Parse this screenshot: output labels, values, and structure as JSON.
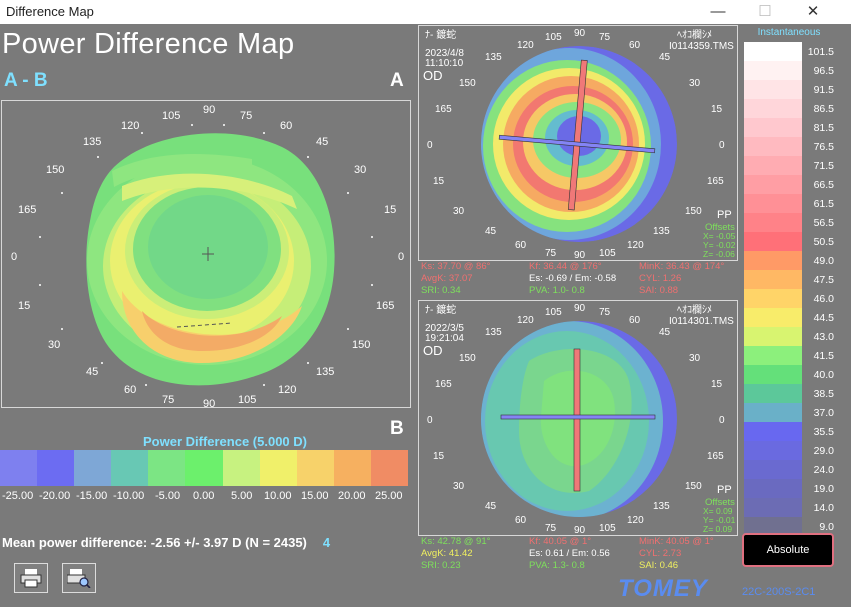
{
  "window": {
    "title": "Difference Map",
    "min": "—",
    "max": "☐",
    "close": "✕"
  },
  "header": {
    "title": "Power Difference Map",
    "subtitle": "A - B",
    "label_a": "A",
    "label_b": "B"
  },
  "main_map": {
    "ticks": [
      "90",
      "105",
      "120",
      "135",
      "150",
      "165",
      "0",
      "15",
      "30",
      "45",
      "60",
      "75",
      "90",
      "105",
      "120",
      "135",
      "150",
      "165",
      "0",
      "15",
      "30",
      "45",
      "60",
      "75"
    ]
  },
  "scale": {
    "title": "Power Difference (5.000 D)",
    "labels": [
      "-25.00",
      "-20.00",
      "-15.00",
      "-10.00",
      "-5.00",
      "0.00",
      "5.00",
      "10.00",
      "15.00",
      "20.00",
      "25.00"
    ],
    "colors": [
      "#7e80ef",
      "#6c6cf2",
      "#7ea7d6",
      "#68c8b4",
      "#7ce584",
      "#6cf06c",
      "#c7f280",
      "#f0f06a",
      "#f7d26a",
      "#f6b060",
      "#f08c64"
    ]
  },
  "mean": {
    "text": "Mean power difference:  -2.56 +/-  3.97 D (N = 2435)",
    "count": "4"
  },
  "toolbar": {
    "print_label": "print",
    "preview_label": "print-preview"
  },
  "map_a": {
    "name": "ﾅ- 鍍蛇",
    "name_right": "ﾍｵｺ欄ｼﾒ",
    "date": "2023/4/8",
    "time": "11:10:10",
    "file": "I0114359.TMS",
    "eye": "OD",
    "pp": "PP",
    "offsets_title": "Offsets",
    "offsets": [
      "X= -0.05",
      "Y= -0.02",
      "Z= -0.06"
    ],
    "stats": {
      "ks": "Ks: 37.70 @ 86°",
      "kf": "Kf: 36.44 @ 176°",
      "mink": "MinK: 36.43 @ 174°",
      "avgk": "AvgK: 37.07",
      "es": "Es: -0.69 / Em: -0.58",
      "cyl": "CYL:  1.26",
      "sri": "SRI: 0.34",
      "pva": "PVA:  1.0- 0.8",
      "sai": "SAI: 0.88"
    }
  },
  "map_b": {
    "name": "ﾅ- 鍍蛇",
    "name_right": "ﾍｵｺ欄ｼﾒ",
    "date": "2022/3/5",
    "time": "19:21:04",
    "file": "I0114301.TMS",
    "eye": "OD",
    "pp": "PP",
    "offsets_title": "Offsets",
    "offsets": [
      "X= 0.09",
      "Y= -0.01",
      "Z= 0.09"
    ],
    "stats": {
      "ks": "Ks: 42.78 @ 91°",
      "kf": "Kf: 40.05 @ 1°",
      "mink": "MinK: 40.05 @ 1°",
      "avgk": "AvgK: 41.42",
      "es": "Es: 0.61 / Em: 0.56",
      "cyl": "CYL:  2.73",
      "sri": "SRI: 0.23",
      "pva": "PVA:  1.3- 0.8",
      "sai": "SAI: 0.46"
    }
  },
  "small_ticks": [
    "90",
    "105",
    "120",
    "135",
    "150",
    "165",
    "0",
    "15",
    "30",
    "45",
    "60",
    "75",
    "90",
    "105",
    "120",
    "135",
    "150",
    "165",
    "0",
    "15",
    "30",
    "45",
    "60",
    "75"
  ],
  "legend": {
    "title": "Instantaneous",
    "values": [
      "101.5",
      "96.5",
      "91.5",
      "86.5",
      "81.5",
      "76.5",
      "71.5",
      "66.5",
      "61.5",
      "56.5",
      "50.5",
      "49.0",
      "47.5",
      "46.0",
      "44.5",
      "43.0",
      "41.5",
      "40.0",
      "38.5",
      "37.0",
      "35.5",
      "29.0",
      "24.0",
      "19.0",
      "14.0",
      "9.0"
    ],
    "colors": [
      "#ffffff",
      "#fff2f2",
      "#ffe4e6",
      "#ffd6da",
      "#ffc8ce",
      "#ffbac0",
      "#ffacb2",
      "#ff9ea4",
      "#ff9096",
      "#ff8288",
      "#ff7078",
      "#ff9a66",
      "#ffb864",
      "#ffd468",
      "#f8ec6a",
      "#d8f470",
      "#8cf07c",
      "#64e07a",
      "#5cc89a",
      "#6ab0c8",
      "#6868f0",
      "#6a6ae0",
      "#6a6ad0",
      "#6a6ac0",
      "#6c6cb4",
      "#707090"
    ],
    "mode_button": "Absolute"
  },
  "footer": {
    "brand": "TOMEY",
    "serial": "22C-200S-2C1"
  }
}
